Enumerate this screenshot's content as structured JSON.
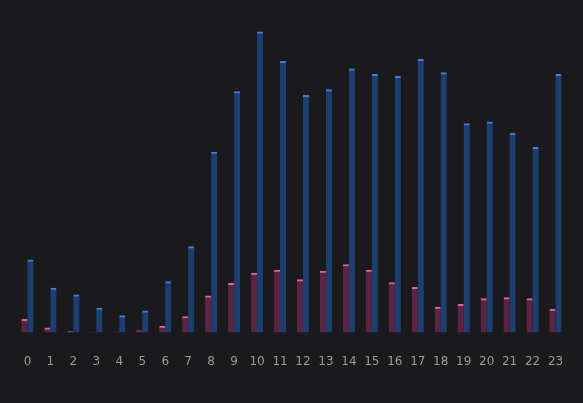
{
  "chart_data": {
    "type": "bar",
    "categories": [
      "0",
      "1",
      "2",
      "3",
      "4",
      "5",
      "6",
      "7",
      "8",
      "9",
      "10",
      "11",
      "12",
      "13",
      "14",
      "15",
      "16",
      "17",
      "18",
      "19",
      "20",
      "21",
      "22",
      "23"
    ],
    "series": [
      {
        "color": "#5a2444",
        "values": [
          14,
          5,
          1,
          0,
          0,
          2,
          7,
          17,
          39,
          52,
          63,
          66,
          56,
          65,
          72,
          66,
          53,
          48,
          27,
          30,
          36,
          37,
          36,
          25
        ]
      },
      {
        "color": "#1c3f70",
        "values": [
          77,
          47,
          40,
          26,
          18,
          23,
          54,
          91,
          191,
          255,
          318,
          287,
          251,
          257,
          279,
          273,
          271,
          289,
          275,
          221,
          223,
          211,
          196,
          273
        ]
      }
    ],
    "ylim": [
      0,
      320
    ],
    "grid": false,
    "tick_labels": "x"
  }
}
